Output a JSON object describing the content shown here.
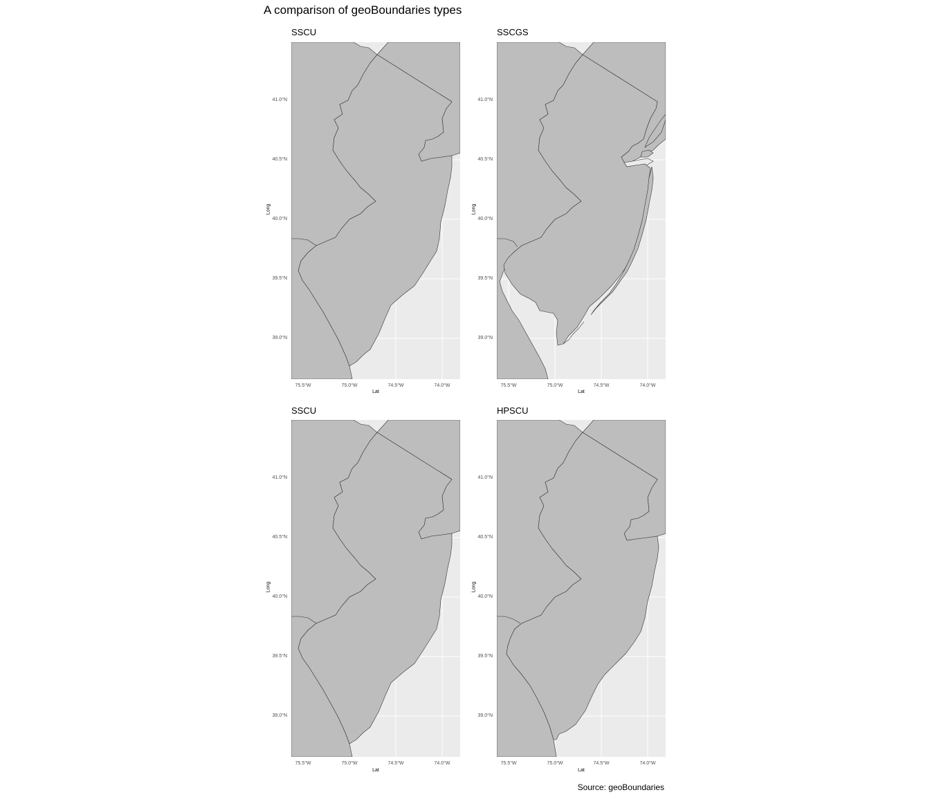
{
  "title": "A comparison of geoBoundaries types",
  "caption": "Source: geoBoundaries",
  "colors": {
    "land": "#bdbdbd",
    "water_panel": "#ebebeb",
    "grid": "#ffffff",
    "border": "#333333"
  },
  "panels": [
    {
      "title": "SSCU",
      "variant": "standard"
    },
    {
      "title": "SSCGS",
      "variant": "coastal"
    },
    {
      "title": "SSCU",
      "variant": "standard"
    },
    {
      "title": "HPSCU",
      "variant": "highprecision"
    }
  ],
  "axes": {
    "xlabel": "Lat",
    "ylabel": "Long",
    "x_ticks": [
      "75.5°W",
      "75.0°W",
      "74.5°W",
      "74.0°W"
    ],
    "y_ticks": [
      "41.0°N",
      "40.5°N",
      "40.0°N",
      "39.5°N",
      "39.0°N"
    ]
  }
}
